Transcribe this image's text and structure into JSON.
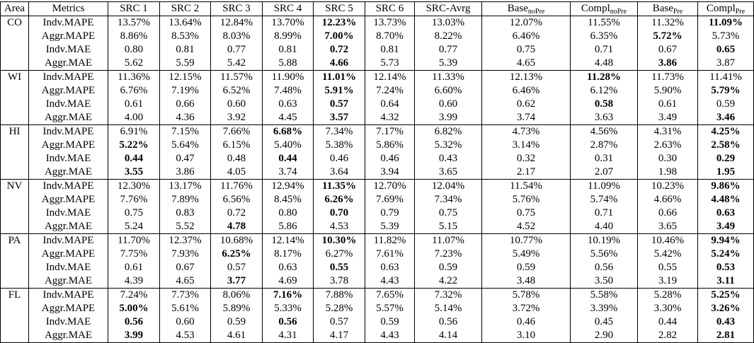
{
  "table": {
    "header": [
      "Area",
      "Metrics",
      "SRC 1",
      "SRC 2",
      "SRC 3",
      "SRC 4",
      "SRC 5",
      "SRC 6",
      "SRC-Avrg",
      {
        "text": "Base",
        "sub": "noPre"
      },
      {
        "text": "Compl",
        "sub": "noPre"
      },
      {
        "text": "Base",
        "sub": "Pre"
      },
      {
        "text": "Compl",
        "sub": "Pre"
      }
    ],
    "groups": [
      {
        "area": "CO",
        "rows": [
          {
            "metric": "Indv.MAPE",
            "cells": [
              "13.57%",
              "13.64%",
              "12.84%",
              "13.70%",
              {
                "text": "12.23%",
                "bold": true
              },
              "13.73%",
              "13.03%",
              "12.07%",
              "11.55%",
              "11.32%",
              {
                "text": "11.09%",
                "bold": true
              }
            ]
          },
          {
            "metric": "Aggr.MAPE",
            "cells": [
              "8.86%",
              "8.53%",
              "8.03%",
              "8.99%",
              {
                "text": "7.00%",
                "bold": true
              },
              "8.70%",
              "8.22%",
              "6.46%",
              "6.35%",
              {
                "text": "5.72%",
                "bold": true
              },
              "5.73%"
            ]
          },
          {
            "metric": "Indv.MAE",
            "cells": [
              "0.80",
              "0.81",
              "0.77",
              "0.81",
              {
                "text": "0.72",
                "bold": true
              },
              "0.81",
              "0.77",
              "0.75",
              "0.71",
              "0.67",
              {
                "text": "0.65",
                "bold": true
              }
            ]
          },
          {
            "metric": "Aggr.MAE",
            "cells": [
              "5.62",
              "5.59",
              "5.42",
              "5.88",
              {
                "text": "4.66",
                "bold": true
              },
              "5.73",
              "5.39",
              "4.65",
              "4.48",
              {
                "text": "3.86",
                "bold": true
              },
              "3.87"
            ]
          }
        ]
      },
      {
        "area": "WI",
        "rows": [
          {
            "metric": "Indv.MAPE",
            "cells": [
              "11.36%",
              "12.15%",
              "11.57%",
              "11.90%",
              {
                "text": "11.01%",
                "bold": true
              },
              "12.14%",
              "11.33%",
              "12.13%",
              {
                "text": "11.28%",
                "bold": true
              },
              "11.73%",
              "11.41%"
            ]
          },
          {
            "metric": "Aggr.MAPE",
            "cells": [
              "6.76%",
              "7.19%",
              "6.52%",
              "7.48%",
              {
                "text": "5.91%",
                "bold": true
              },
              "7.24%",
              "6.60%",
              "6.46%",
              "6.12%",
              "5.90%",
              {
                "text": "5.79%",
                "bold": true
              }
            ]
          },
          {
            "metric": "Indv.MAE",
            "cells": [
              "0.61",
              "0.66",
              "0.60",
              "0.63",
              {
                "text": "0.57",
                "bold": true
              },
              "0.64",
              "0.60",
              "0.62",
              {
                "text": "0.58",
                "bold": true
              },
              "0.61",
              "0.59"
            ]
          },
          {
            "metric": "Aggr.MAE",
            "cells": [
              "4.00",
              "4.36",
              "3.92",
              "4.45",
              {
                "text": "3.57",
                "bold": true
              },
              "4.32",
              "3.99",
              "3.74",
              "3.63",
              "3.49",
              {
                "text": "3.46",
                "bold": true
              }
            ]
          }
        ]
      },
      {
        "area": "HI",
        "rows": [
          {
            "metric": "Indv.MAPE",
            "cells": [
              "6.91%",
              "7.15%",
              "7.66%",
              {
                "text": "6.68%",
                "bold": true
              },
              "7.34%",
              "7.17%",
              "6.82%",
              "4.73%",
              "4.56%",
              "4.31%",
              {
                "text": "4.25%",
                "bold": true
              }
            ]
          },
          {
            "metric": "Aggr.MAPE",
            "cells": [
              {
                "text": "5.22%",
                "bold": true
              },
              "5.64%",
              "6.15%",
              "5.40%",
              "5.38%",
              "5.86%",
              "5.32%",
              "3.14%",
              "2.87%",
              "2.63%",
              {
                "text": "2.58%",
                "bold": true
              }
            ]
          },
          {
            "metric": "Indv.MAE",
            "cells": [
              {
                "text": "0.44",
                "bold": true
              },
              "0.47",
              "0.48",
              {
                "text": "0.44",
                "bold": true
              },
              "0.46",
              "0.46",
              "0.43",
              "0.32",
              "0.31",
              "0.30",
              {
                "text": "0.29",
                "bold": true
              }
            ]
          },
          {
            "metric": "Aggr.MAE",
            "cells": [
              {
                "text": "3.55",
                "bold": true
              },
              "3.86",
              "4.05",
              "3.74",
              "3.64",
              "3.94",
              "3.65",
              "2.17",
              "2.07",
              "1.98",
              {
                "text": "1.95",
                "bold": true
              }
            ]
          }
        ]
      },
      {
        "area": "NV",
        "rows": [
          {
            "metric": "Indv.MAPE",
            "cells": [
              "12.30%",
              "13.17%",
              "11.76%",
              "12.94%",
              {
                "text": "11.35%",
                "bold": true
              },
              "12.70%",
              "12.04%",
              "11.54%",
              "11.09%",
              "10.23%",
              {
                "text": "9.86%",
                "bold": true
              }
            ]
          },
          {
            "metric": "Aggr.MAPE",
            "cells": [
              "7.76%",
              "7.89%",
              "6.56%",
              "8.45%",
              {
                "text": "6.26%",
                "bold": true
              },
              "7.69%",
              "7.34%",
              "5.76%",
              "5.74%",
              "4.66%",
              {
                "text": "4.48%",
                "bold": true
              }
            ]
          },
          {
            "metric": "Indv.MAE",
            "cells": [
              "0.75",
              "0.83",
              "0.72",
              "0.80",
              {
                "text": "0.70",
                "bold": true
              },
              "0.79",
              "0.75",
              "0.75",
              "0.71",
              "0.66",
              {
                "text": "0.63",
                "bold": true
              }
            ]
          },
          {
            "metric": "Aggr.MAE",
            "cells": [
              "5.24",
              "5.52",
              {
                "text": "4.78",
                "bold": true
              },
              "5.86",
              "4.53",
              "5.39",
              "5.15",
              "4.52",
              "4.40",
              "3.65",
              {
                "text": "3.49",
                "bold": true
              }
            ]
          }
        ]
      },
      {
        "area": "PA",
        "rows": [
          {
            "metric": "Indv.MAPE",
            "cells": [
              "11.70%",
              "12.37%",
              "10.68%",
              "12.14%",
              {
                "text": "10.30%",
                "bold": true
              },
              "11.82%",
              "11.07%",
              "10.77%",
              "10.19%",
              "10.46%",
              {
                "text": "9.94%",
                "bold": true
              }
            ]
          },
          {
            "metric": "Aggr.MAPE",
            "cells": [
              "7.75%",
              "7.93%",
              {
                "text": "6.25%",
                "bold": true
              },
              "8.17%",
              "6.27%",
              "7.61%",
              "7.23%",
              "5.49%",
              "5.56%",
              "5.42%",
              {
                "text": "5.24%",
                "bold": true
              }
            ]
          },
          {
            "metric": "Indv.MAE",
            "cells": [
              "0.61",
              "0.67",
              "0.57",
              "0.63",
              {
                "text": "0.55",
                "bold": true
              },
              "0.63",
              "0.59",
              "0.59",
              "0.56",
              "0.55",
              {
                "text": "0.53",
                "bold": true
              }
            ]
          },
          {
            "metric": "Aggr.MAE",
            "cells": [
              "4.39",
              "4.65",
              {
                "text": "3.77",
                "bold": true
              },
              "4.69",
              "3.78",
              "4.43",
              "4.22",
              "3.48",
              "3.50",
              "3.19",
              {
                "text": "3.11",
                "bold": true
              }
            ]
          }
        ]
      },
      {
        "area": "FL",
        "rows": [
          {
            "metric": "Indv.MAPE",
            "cells": [
              "7.24%",
              "7.73%",
              "8.06%",
              {
                "text": "7.16%",
                "bold": true
              },
              "7.88%",
              "7.65%",
              "7.32%",
              "5.78%",
              "5.58%",
              "5.28%",
              {
                "text": "5.25%",
                "bold": true
              }
            ]
          },
          {
            "metric": "Aggr.MAPE",
            "cells": [
              {
                "text": "5.00%",
                "bold": true
              },
              "5.61%",
              "5.89%",
              "5.33%",
              "5.28%",
              "5.57%",
              "5.14%",
              "3.72%",
              "3.39%",
              "3.30%",
              {
                "text": "3.26%",
                "bold": true
              }
            ]
          },
          {
            "metric": "Indv.MAE",
            "cells": [
              {
                "text": "0.56",
                "bold": true
              },
              "0.60",
              "0.59",
              {
                "text": "0.56",
                "bold": true
              },
              "0.57",
              "0.59",
              "0.56",
              "0.46",
              "0.45",
              "0.44",
              {
                "text": "0.43",
                "bold": true
              }
            ]
          },
          {
            "metric": "Aggr.MAE",
            "cells": [
              {
                "text": "3.99",
                "bold": true
              },
              "4.53",
              "4.61",
              "4.31",
              "4.17",
              "4.43",
              "4.14",
              "3.10",
              "2.90",
              "2.82",
              {
                "text": "2.81",
                "bold": true
              }
            ]
          }
        ]
      }
    ]
  }
}
